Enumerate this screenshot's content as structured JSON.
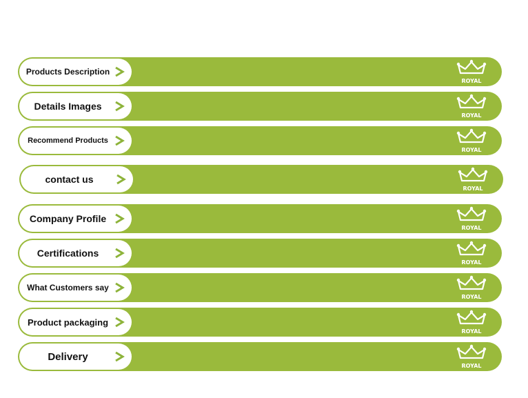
{
  "menu": {
    "items": [
      {
        "label": "Products Description",
        "logo_text": "ROYAL"
      },
      {
        "label": "Details Images",
        "logo_text": "ROYAL"
      },
      {
        "label": "Recommend Products",
        "logo_text": "ROYAL"
      },
      {
        "label": "contact us",
        "logo_text": "ROYAL"
      },
      {
        "label": "Company Profile",
        "logo_text": "ROYAL"
      },
      {
        "label": "Certifications",
        "logo_text": "ROYAL"
      },
      {
        "label": "What Customers say",
        "logo_text": "ROYAL"
      },
      {
        "label": "Product packaging",
        "logo_text": "ROYAL"
      },
      {
        "label": "Delivery",
        "logo_text": "ROYAL"
      }
    ],
    "icons": {
      "arrow": "chevron-right-icon",
      "logo": "crown-icon"
    }
  },
  "colors": {
    "bar": "#9aba3c",
    "pill": "#ffffff",
    "arrow": "#8db33a",
    "text": "#111111"
  }
}
